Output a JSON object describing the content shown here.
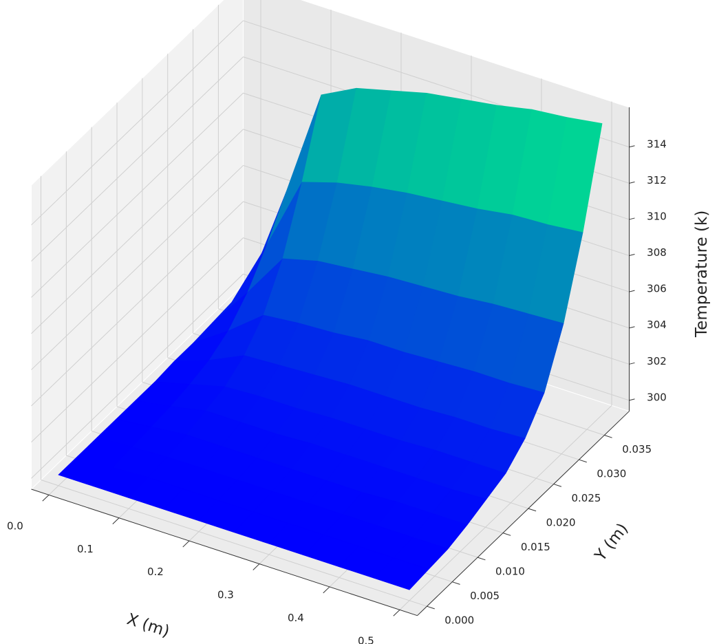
{
  "chart_data": {
    "type": "surface",
    "xlabel": "X (m)",
    "ylabel": "Y (m)",
    "zlabel": "Temperature (k)",
    "colormap": "winter",
    "grid": true,
    "x": [
      0,
      0.05,
      0.1,
      0.15,
      0.2,
      0.25,
      0.3,
      0.35,
      0.4,
      0.45,
      0.5
    ],
    "y": [
      0,
      0.0038,
      0.0076,
      0.0114,
      0.0152,
      0.019,
      0.0228,
      0.0266,
      0.0304,
      0.0342,
      0.038
    ],
    "z": [
      [
        300,
        300,
        300,
        300,
        300,
        300,
        300.1,
        300.1,
        300.2,
        300.3,
        300.5
      ],
      [
        300,
        300,
        300.1,
        300.2,
        300.3,
        300.5,
        300.8,
        301.4,
        302.5,
        304.1,
        306
      ],
      [
        300,
        300.1,
        300.2,
        300.4,
        300.7,
        301,
        301.7,
        302.9,
        305,
        308.2,
        312
      ],
      [
        300,
        300.1,
        300.2,
        300.4,
        300.7,
        301.1,
        301.8,
        303.1,
        305.5,
        308.8,
        313
      ],
      [
        300,
        300.1,
        300.2,
        300.4,
        300.7,
        301.1,
        301.9,
        303.2,
        305.7,
        309.2,
        313.5
      ],
      [
        300,
        300.1,
        300.2,
        300.4,
        300.8,
        301.2,
        302,
        303.4,
        305.9,
        309.5,
        314
      ],
      [
        300,
        300.1,
        300.2,
        300.4,
        300.8,
        301.2,
        302,
        303.4,
        306,
        309.7,
        314.3
      ],
      [
        300,
        300.1,
        300.2,
        300.4,
        300.8,
        301.2,
        302,
        303.5,
        306.1,
        309.9,
        314.6
      ],
      [
        300,
        300.1,
        300.2,
        300.5,
        300.8,
        301.3,
        302.1,
        303.6,
        306.3,
        310.2,
        315
      ],
      [
        300,
        300.1,
        300.2,
        300.5,
        300.8,
        301.3,
        302.1,
        303.6,
        306.4,
        310.3,
        315.2
      ],
      [
        300,
        300.1,
        300.2,
        300.5,
        300.9,
        301.3,
        302.2,
        303.7,
        306.5,
        310.5,
        315.5
      ]
    ],
    "xlim": [
      -0.025,
      0.525
    ],
    "ylim": [
      -0.0019,
      0.0399
    ],
    "zlim": [
      299.4,
      316.2
    ],
    "xticks": [
      {
        "value": 0,
        "label": "0.0"
      },
      0.1,
      0.2,
      0.3,
      0.4,
      0.5
    ],
    "yticks": [
      {
        "value": 0,
        "label": "0.000"
      },
      0.005,
      {
        "value": 0.01,
        "label": "0.010"
      },
      0.015,
      {
        "value": 0.02,
        "label": "0.020"
      },
      0.025,
      {
        "value": 0.03,
        "label": "0.030"
      },
      0.035
    ],
    "zticks": [
      300,
      302,
      304,
      306,
      308,
      310,
      312,
      314
    ]
  }
}
